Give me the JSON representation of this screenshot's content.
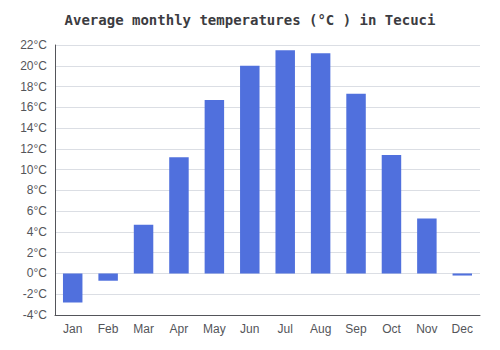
{
  "chart_data": {
    "type": "bar",
    "title": "Average monthly temperatures (°C ) in Tecuci",
    "categories": [
      "Jan",
      "Feb",
      "Mar",
      "Apr",
      "May",
      "Jun",
      "Jul",
      "Aug",
      "Sep",
      "Oct",
      "Nov",
      "Dec"
    ],
    "values": [
      -2.8,
      -0.7,
      4.7,
      11.2,
      16.7,
      20.0,
      21.5,
      21.2,
      17.3,
      11.4,
      5.3,
      -0.2
    ],
    "ylim": [
      -4,
      22
    ],
    "yticks": [
      {
        "value": -4,
        "label": "-4°C"
      },
      {
        "value": -2,
        "label": "-2°C"
      },
      {
        "value": 0,
        "label": "0°C"
      },
      {
        "value": 2,
        "label": "2°C"
      },
      {
        "value": 4,
        "label": "4°C"
      },
      {
        "value": 6,
        "label": "6°C"
      },
      {
        "value": 8,
        "label": "8°C"
      },
      {
        "value": 10,
        "label": "10°C"
      },
      {
        "value": 12,
        "label": "12°C"
      },
      {
        "value": 14,
        "label": "14°C"
      },
      {
        "value": 16,
        "label": "16°C"
      },
      {
        "value": 18,
        "label": "18°C"
      },
      {
        "value": 20,
        "label": "20°C"
      },
      {
        "value": 22,
        "label": "22°C"
      }
    ],
    "grid": true
  }
}
